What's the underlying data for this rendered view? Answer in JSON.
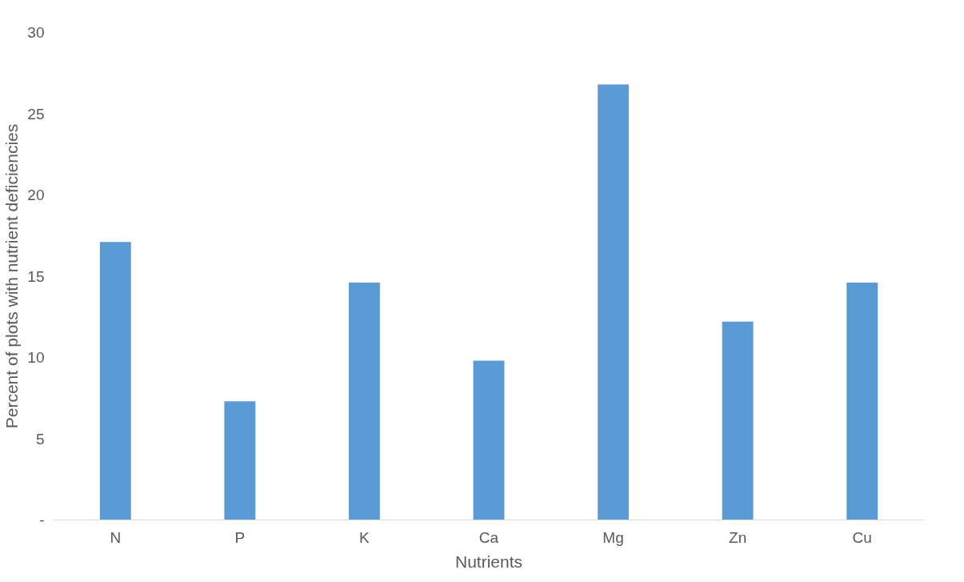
{
  "chart_data": {
    "type": "bar",
    "xlabel": "Nutrients",
    "ylabel": "Percent of plots with nutrient deficiencies",
    "categories": [
      "N",
      "P",
      "K",
      "Ca",
      "Mg",
      "Zn",
      "Cu"
    ],
    "values": [
      17.1,
      7.3,
      14.6,
      9.8,
      26.8,
      12.2,
      14.6
    ],
    "color": "#5b9bd5",
    "ylim": [
      0,
      30
    ],
    "yticks": [
      {
        "value": 0,
        "label": "-"
      },
      5,
      10,
      15,
      20,
      25,
      30
    ],
    "grid": false
  }
}
